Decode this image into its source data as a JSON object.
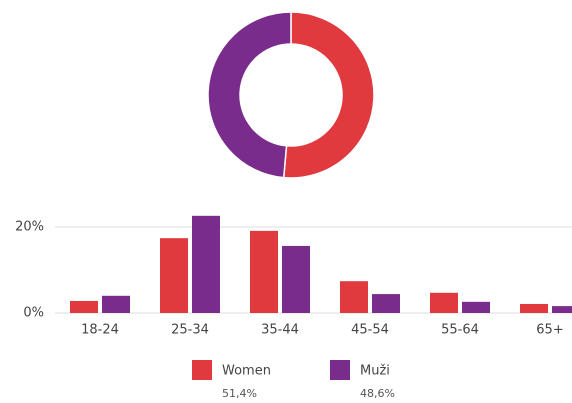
{
  "chart_data": [
    {
      "type": "pie",
      "donut": true,
      "values": [
        51.4,
        48.6
      ],
      "value_labels": [
        "51,4%",
        "48,6%"
      ],
      "colors": [
        "#e0393e",
        "#7a2c8c"
      ]
    },
    {
      "type": "bar",
      "categories": [
        "18-24",
        "25-34",
        "35-44",
        "45-54",
        "55-64",
        "65+"
      ],
      "series": [
        {
          "name": "Women",
          "color": "#e0393e",
          "values": [
            2.8,
            17.4,
            19.1,
            7.4,
            4.7,
            2.1
          ]
        },
        {
          "name": "Muži",
          "color": "#7a2c8c",
          "values": [
            4.0,
            22.6,
            15.6,
            4.4,
            2.6,
            1.6
          ]
        }
      ],
      "ylim": [
        0,
        25
      ],
      "yticks": [
        {
          "value": 0,
          "label": "0%"
        },
        {
          "value": 20,
          "label": "20%"
        }
      ],
      "grid": true
    }
  ]
}
